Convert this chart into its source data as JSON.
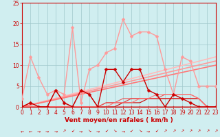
{
  "xlabel": "Vent moyen/en rafales ( km/h )",
  "xlim": [
    0,
    23
  ],
  "ylim": [
    0,
    25
  ],
  "xticks": [
    0,
    1,
    2,
    3,
    4,
    5,
    6,
    7,
    8,
    9,
    10,
    11,
    12,
    13,
    14,
    15,
    16,
    17,
    18,
    19,
    20,
    21,
    22,
    23
  ],
  "yticks": [
    0,
    5,
    10,
    15,
    20,
    25
  ],
  "background_color": "#d0eef0",
  "grid_color": "#a0c8cc",
  "series": [
    {
      "x": [
        0,
        1,
        2,
        3,
        4,
        5,
        6,
        7,
        8,
        9,
        10,
        11,
        12,
        13,
        14,
        15,
        16,
        17,
        18,
        19,
        20,
        21,
        22,
        23
      ],
      "y": [
        2,
        12,
        7,
        3,
        4,
        3,
        19,
        1,
        9,
        10,
        13,
        14,
        21,
        17,
        18,
        18,
        17,
        9,
        3,
        12,
        11,
        5,
        5,
        5
      ],
      "color": "#ff9999",
      "marker": "D",
      "markersize": 2.5,
      "linewidth": 1.0,
      "zorder": 4
    },
    {
      "x": [
        0,
        1,
        2,
        3,
        4,
        5,
        6,
        7,
        8,
        9,
        10,
        11,
        12,
        13,
        14,
        15,
        16,
        17,
        18,
        19,
        20,
        21,
        22,
        23
      ],
      "y": [
        0,
        1,
        0,
        0,
        4,
        1,
        0,
        4,
        3,
        0,
        9,
        9,
        6,
        9,
        9,
        4,
        3,
        0,
        3,
        2,
        1,
        0,
        0,
        0
      ],
      "color": "#cc0000",
      "marker": "D",
      "markersize": 2.5,
      "linewidth": 1.0,
      "zorder": 5
    },
    {
      "x": [
        0,
        23
      ],
      "y": [
        0,
        12
      ],
      "color": "#ffbbbb",
      "marker": null,
      "linewidth": 1.2,
      "zorder": 2
    },
    {
      "x": [
        0,
        23
      ],
      "y": [
        0,
        11
      ],
      "color": "#ff9999",
      "marker": null,
      "linewidth": 1.2,
      "zorder": 2
    },
    {
      "x": [
        0,
        23
      ],
      "y": [
        0,
        10
      ],
      "color": "#ff7777",
      "marker": null,
      "linewidth": 1.2,
      "zorder": 2
    },
    {
      "x": [
        0,
        1,
        2,
        3,
        4,
        5,
        6,
        7,
        8,
        9,
        10,
        11,
        12,
        13,
        14,
        15,
        16,
        17,
        18,
        19,
        20,
        21,
        22,
        23
      ],
      "y": [
        0,
        0,
        0,
        0,
        0,
        0,
        0,
        0,
        0,
        0,
        0,
        0,
        1,
        1,
        1,
        2,
        2,
        2,
        2,
        2,
        2,
        2,
        0,
        0
      ],
      "color": "#cc0000",
      "marker": null,
      "linewidth": 0.8,
      "zorder": 3
    },
    {
      "x": [
        0,
        1,
        2,
        3,
        4,
        5,
        6,
        7,
        8,
        9,
        10,
        11,
        12,
        13,
        14,
        15,
        16,
        17,
        18,
        19,
        20,
        21,
        22,
        23
      ],
      "y": [
        0,
        0,
        0,
        0,
        0,
        0,
        0,
        0,
        0,
        0,
        1,
        1,
        1,
        2,
        2,
        2,
        2,
        2,
        2,
        2,
        2,
        2,
        0,
        0
      ],
      "color": "#dd3333",
      "marker": null,
      "linewidth": 0.8,
      "zorder": 3
    },
    {
      "x": [
        0,
        1,
        2,
        3,
        4,
        5,
        6,
        7,
        8,
        9,
        10,
        11,
        12,
        13,
        14,
        15,
        16,
        17,
        18,
        19,
        20,
        21,
        22,
        23
      ],
      "y": [
        0,
        0,
        0,
        0,
        0,
        0,
        0,
        0,
        0,
        0,
        1,
        1,
        2,
        2,
        2,
        2,
        2,
        3,
        3,
        3,
        3,
        2,
        0,
        0
      ],
      "color": "#ee5555",
      "marker": null,
      "linewidth": 0.8,
      "zorder": 3
    },
    {
      "x": [
        0,
        1,
        2,
        3,
        4,
        5,
        6,
        7,
        8,
        9,
        10,
        11,
        12,
        13,
        14,
        15,
        16,
        17,
        18,
        19,
        20,
        21,
        22,
        23
      ],
      "y": [
        0,
        0,
        0,
        0,
        0,
        0,
        0,
        0,
        0,
        0,
        0,
        1,
        1,
        1,
        2,
        2,
        3,
        3,
        3,
        3,
        3,
        2,
        0,
        0
      ],
      "color": "#ff7777",
      "marker": null,
      "linewidth": 0.8,
      "zorder": 3
    },
    {
      "x": [
        0,
        1,
        2,
        3,
        4,
        5,
        6,
        7,
        8,
        9,
        10,
        11,
        12,
        13,
        14,
        15,
        16,
        17,
        18,
        19,
        20,
        21,
        22,
        23
      ],
      "y": [
        0,
        1,
        0,
        0,
        4,
        1,
        0,
        4,
        3,
        0,
        0,
        0,
        0,
        0,
        0,
        0,
        0,
        0,
        0,
        0,
        0,
        0,
        0,
        0
      ],
      "color": "#cc3333",
      "marker": "^",
      "markersize": 2.5,
      "linewidth": 0.8,
      "zorder": 3
    }
  ],
  "arrow_chars": [
    "←",
    "←",
    "→",
    "→",
    "→",
    "↗",
    "↙",
    "→",
    "↘",
    "→",
    "↙",
    "↘",
    "→",
    "↙",
    "↘",
    "→",
    "↙",
    "↗",
    "↗",
    "↗",
    "↗",
    "↗",
    "↗",
    "↗"
  ],
  "tick_fontsize": 5.5,
  "label_fontsize": 6.5,
  "arrow_fontsize": 4.5,
  "label_color": "#cc0000"
}
